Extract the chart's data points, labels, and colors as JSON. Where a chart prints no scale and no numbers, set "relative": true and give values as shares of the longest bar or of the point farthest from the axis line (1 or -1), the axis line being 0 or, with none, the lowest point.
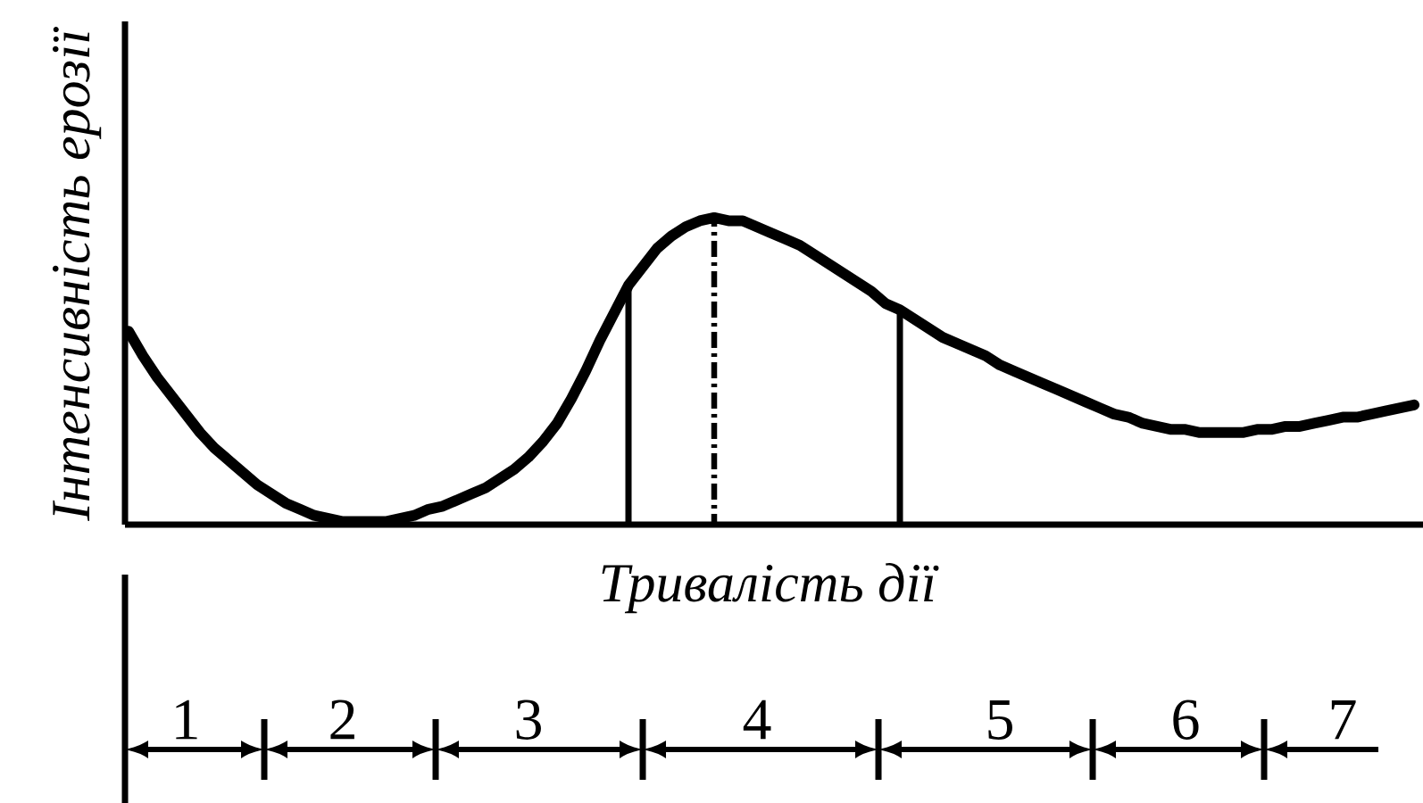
{
  "chart_data": {
    "type": "line",
    "relative": true,
    "xlabel": "Тривалість дії",
    "ylabel": "Інтенсивність ерозії",
    "categories": [
      null,
      null,
      null,
      null,
      "1",
      null,
      null,
      null,
      null,
      null,
      null,
      null,
      null,
      null,
      null,
      "2",
      null,
      null,
      null,
      null,
      null,
      null,
      null,
      null,
      null,
      null,
      null,
      null,
      "3",
      null,
      null,
      null,
      null,
      null,
      null,
      null,
      null,
      null,
      null,
      null,
      null,
      null,
      null,
      null,
      "4",
      null,
      null,
      null,
      null,
      null,
      null,
      null,
      null,
      null,
      null,
      null,
      null,
      null,
      null,
      null,
      null,
      "5",
      null,
      null,
      null,
      null,
      null,
      null,
      null,
      null,
      null,
      null,
      null,
      null,
      "6",
      null,
      null,
      null,
      null,
      null,
      null,
      null,
      null,
      null,
      null,
      "7",
      null,
      null,
      null,
      null,
      null
    ],
    "series": [
      {
        "color": "#000000",
        "values": [
          0.63,
          0.55,
          0.48,
          0.42,
          0.36,
          0.3,
          0.25,
          0.21,
          0.17,
          0.13,
          0.1,
          0.07,
          0.05,
          0.03,
          0.02,
          0.01,
          0.01,
          0.01,
          0.01,
          0.02,
          0.03,
          0.05,
          0.06,
          0.08,
          0.1,
          0.12,
          0.15,
          0.18,
          0.22,
          0.27,
          0.33,
          0.41,
          0.5,
          0.6,
          0.69,
          0.78,
          0.84,
          0.9,
          0.94,
          0.97,
          0.99,
          1.0,
          0.99,
          0.99,
          0.97,
          0.95,
          0.93,
          0.91,
          0.88,
          0.85,
          0.82,
          0.79,
          0.76,
          0.72,
          0.7,
          0.67,
          0.64,
          0.61,
          0.59,
          0.57,
          0.55,
          0.52,
          0.5,
          0.48,
          0.46,
          0.44,
          0.42,
          0.4,
          0.38,
          0.36,
          0.35,
          0.33,
          0.32,
          0.31,
          0.31,
          0.3,
          0.3,
          0.3,
          0.3,
          0.31,
          0.31,
          0.32,
          0.32,
          0.33,
          0.34,
          0.35,
          0.35,
          0.36,
          0.37,
          0.38,
          0.39
        ]
      },
      {
        "type": "bar",
        "color": "#000000",
        "values": [
          null,
          null,
          null,
          null,
          null,
          null,
          null,
          null,
          null,
          null,
          null,
          null,
          null,
          null,
          null,
          null,
          null,
          null,
          null,
          null,
          null,
          null,
          null,
          null,
          null,
          null,
          null,
          null,
          null,
          null,
          null,
          null,
          null,
          null,
          null,
          0.78,
          null,
          null,
          null,
          null,
          null,
          null,
          null,
          null,
          null,
          null,
          null,
          null,
          null,
          null,
          null,
          null,
          null,
          null,
          0.7,
          null,
          null,
          null,
          null,
          null,
          null,
          null,
          null,
          null,
          null,
          null,
          null,
          null,
          null,
          null,
          null,
          null,
          null,
          null,
          null,
          null,
          null,
          null,
          null,
          null,
          null,
          null,
          null,
          null,
          null,
          null,
          null,
          null,
          null,
          null,
          null
        ]
      },
      {
        "type": "bar",
        "color": "#000000",
        "line_style": "dashdot",
        "values": [
          null,
          null,
          null,
          null,
          null,
          null,
          null,
          null,
          null,
          null,
          null,
          null,
          null,
          null,
          null,
          null,
          null,
          null,
          null,
          null,
          null,
          null,
          null,
          null,
          null,
          null,
          null,
          null,
          null,
          null,
          null,
          null,
          null,
          null,
          null,
          null,
          null,
          null,
          null,
          null,
          null,
          1.0,
          null,
          null,
          null,
          null,
          null,
          null,
          null,
          null,
          null,
          null,
          null,
          null,
          null,
          null,
          null,
          null,
          null,
          null,
          null,
          null,
          null,
          null,
          null,
          null,
          null,
          null,
          null,
          null,
          null,
          null,
          null,
          null,
          null,
          null,
          null,
          null,
          null,
          null,
          null,
          null,
          null,
          null,
          null,
          null,
          null,
          null,
          null,
          null,
          null
        ]
      }
    ]
  }
}
